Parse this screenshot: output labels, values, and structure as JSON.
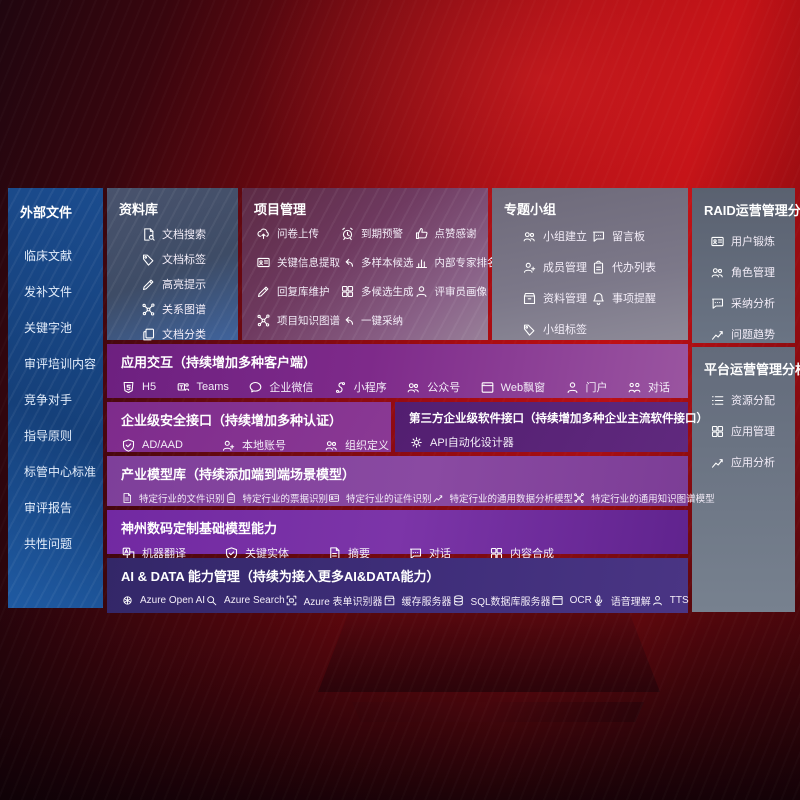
{
  "palette": {
    "background_red": "#b50d12",
    "sidebar_blue": "#1b4c8e",
    "block_purple": "#7e2a8a",
    "deep_purple": "#521e70",
    "indigo": "#3f2e7a",
    "slate_gray": "#636b7b",
    "mauve_block": "#7c7889",
    "text": "#ffffff"
  },
  "sidebar": {
    "title": "外部文件",
    "items": [
      "临床文献",
      "发补文件",
      "关键字池",
      "审评培训内容",
      "竞争对手",
      "指导原则",
      "标管中心标准",
      "审评报告",
      "共性问题"
    ]
  },
  "top_blocks": [
    {
      "title": "资料库",
      "items": [
        {
          "label": "文档搜索",
          "icon": "doc-search"
        },
        {
          "label": "文档标签",
          "icon": "tag"
        },
        {
          "label": "高亮提示",
          "icon": "pen"
        },
        {
          "label": "关系图谱",
          "icon": "network"
        },
        {
          "label": "文档分类",
          "icon": "copy"
        }
      ]
    },
    {
      "title": "项目管理",
      "items": [
        {
          "label": "问卷上传",
          "icon": "cloud"
        },
        {
          "label": "到期预警",
          "icon": "alarm"
        },
        {
          "label": "点赞感谢",
          "icon": "like"
        },
        {
          "label": "关键信息提取",
          "icon": "card"
        },
        {
          "label": "多样本候选",
          "icon": "reply"
        },
        {
          "label": "内部专家排名",
          "icon": "rank"
        },
        {
          "label": "回复库维护",
          "icon": "pen"
        },
        {
          "label": "多候选生成",
          "icon": "grid"
        },
        {
          "label": "评审员画像",
          "icon": "person"
        },
        {
          "label": "项目知识图谱",
          "icon": "network"
        },
        {
          "label": "一键采纳",
          "icon": "reply"
        }
      ]
    },
    {
      "title": "专题小组",
      "items": [
        {
          "label": "小组建立",
          "icon": "people"
        },
        {
          "label": "留言板",
          "icon": "chat"
        },
        {
          "label": "成员管理",
          "icon": "person-add"
        },
        {
          "label": "代办列表",
          "icon": "clipboard"
        },
        {
          "label": "资料管理",
          "icon": "box"
        },
        {
          "label": "事项提醒",
          "icon": "bell"
        },
        {
          "label": "小组标签",
          "icon": "tag"
        }
      ]
    }
  ],
  "right_panels": [
    {
      "title": "RAID运营管理分析",
      "items": [
        {
          "label": "用户锻炼",
          "icon": "card"
        },
        {
          "label": "角色管理",
          "icon": "people"
        },
        {
          "label": "采纳分析",
          "icon": "chat"
        },
        {
          "label": "问题趋势",
          "icon": "chart-line"
        }
      ]
    },
    {
      "title": "平台运营管理分析",
      "items": [
        {
          "label": "资源分配",
          "icon": "list"
        },
        {
          "label": "应用管理",
          "icon": "grid"
        },
        {
          "label": "应用分析",
          "icon": "chart-line"
        }
      ]
    }
  ],
  "rows": [
    {
      "title": "应用交互（持续增加多种客户端）",
      "items": [
        {
          "label": "H5",
          "icon": "h5"
        },
        {
          "label": "Teams",
          "icon": "teams"
        },
        {
          "label": "企业微信",
          "icon": "bubble"
        },
        {
          "label": "小程序",
          "icon": "mini"
        },
        {
          "label": "公众号",
          "icon": "people"
        },
        {
          "label": "Web飘窗",
          "icon": "window"
        },
        {
          "label": "门户",
          "icon": "person"
        },
        {
          "label": "对话",
          "icon": "talk"
        }
      ]
    },
    {
      "title": "企业级安全接口（持续增加多种认证）",
      "items": [
        {
          "label": "AD/AAD",
          "icon": "shield"
        },
        {
          "label": "本地账号",
          "icon": "person-add"
        },
        {
          "label": "组织定义",
          "icon": "people"
        }
      ]
    },
    {
      "title": "第三方企业级软件接口（持续增加多种企业主流软件接口）",
      "items": [
        {
          "label": "API自动化设计器",
          "icon": "gear"
        }
      ]
    },
    {
      "title": "产业模型库（持续添加端到端场景模型）",
      "items": [
        {
          "label": "特定行业的文件识别",
          "icon": "doc"
        },
        {
          "label": "特定行业的票据识别",
          "icon": "clipboard"
        },
        {
          "label": "特定行业的证件识别",
          "icon": "card"
        },
        {
          "label": "特定行业的通用数据分析模型",
          "icon": "chart-line"
        },
        {
          "label": "特定行业的通用知识图谱模型",
          "icon": "network"
        }
      ]
    },
    {
      "title": "神州数码定制基础模型能力",
      "items": [
        {
          "label": "机器翻译",
          "icon": "translate"
        },
        {
          "label": "关键实体",
          "icon": "shield"
        },
        {
          "label": "摘要",
          "icon": "doc"
        },
        {
          "label": "对话",
          "icon": "chat"
        },
        {
          "label": "内容合成",
          "icon": "grid"
        }
      ]
    },
    {
      "title": "AI & DATA 能力管理（持续为接入更多AI&DATA能力）",
      "items": [
        {
          "label": "Azure Open AI",
          "icon": "openai"
        },
        {
          "label": "Azure Search",
          "icon": "search"
        },
        {
          "label": "Azure 表单识别器",
          "icon": "ocr"
        },
        {
          "label": "缓存服务器",
          "icon": "box"
        },
        {
          "label": "SQL数据库服务器",
          "icon": "db"
        },
        {
          "label": "OCR",
          "icon": "window"
        },
        {
          "label": "语音理解",
          "icon": "mic"
        },
        {
          "label": "TTS",
          "icon": "person"
        }
      ]
    }
  ]
}
